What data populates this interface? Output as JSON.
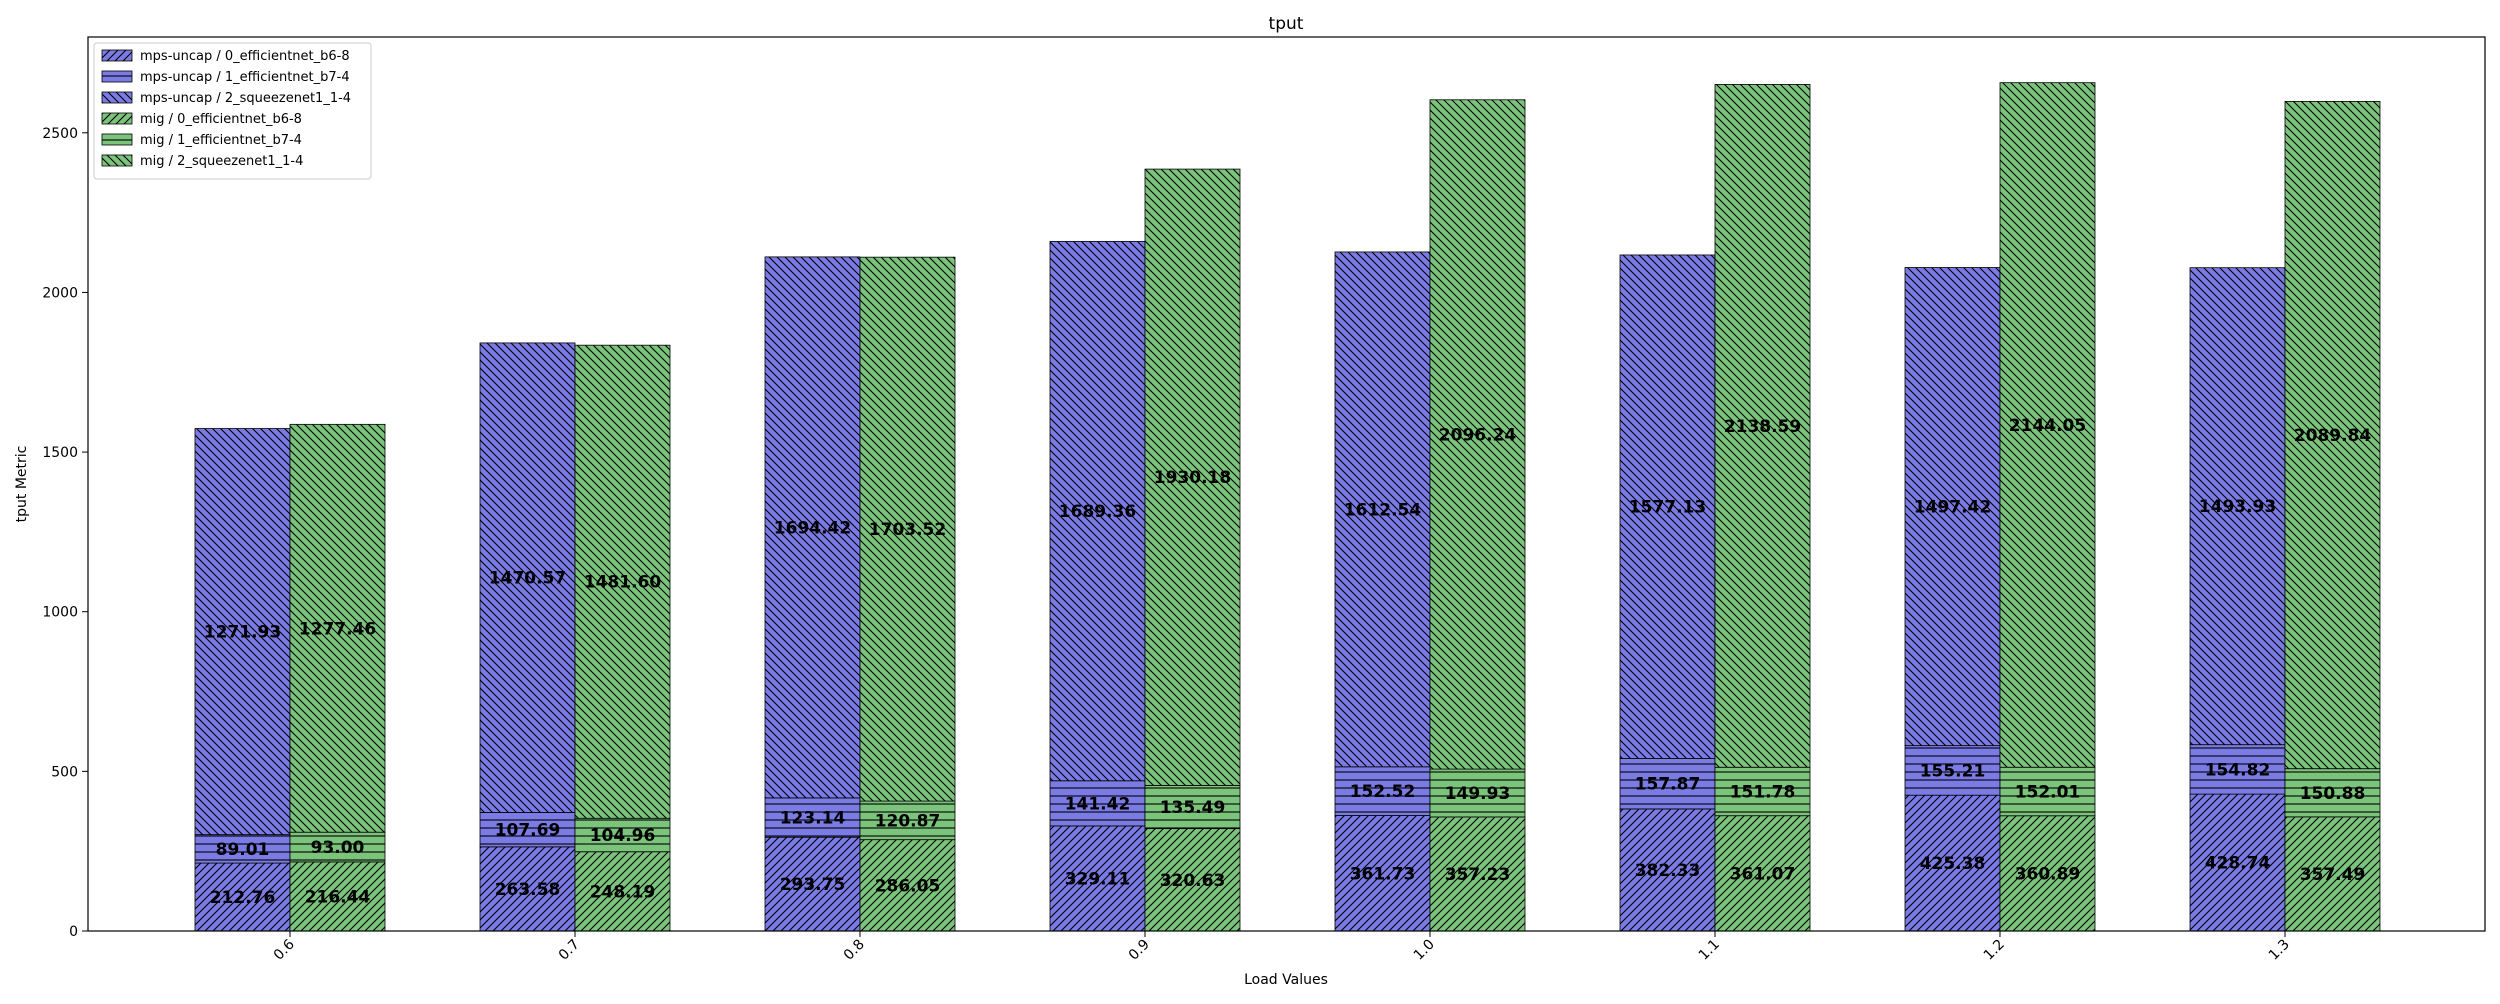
{
  "chart_data": {
    "type": "bar",
    "stacked": true,
    "grouped": true,
    "title": "tput",
    "xlabel": "Load Values",
    "ylabel": "tput Metric",
    "ylim": [
      0,
      2800
    ],
    "yticks": [
      0,
      500,
      1000,
      1500,
      2000,
      2500
    ],
    "categories": [
      "0.6",
      "0.7",
      "0.8",
      "0.9",
      "1.0",
      "1.1",
      "1.2",
      "1.3"
    ],
    "grid": false,
    "legend_position": "top-left",
    "colors": {
      "mps-uncap": "#7b7be6",
      "mig": "#7bc47b",
      "edge": "#000000"
    },
    "series": [
      {
        "name": "mps-uncap / 0_efficientnet_b6-8",
        "group": "mps-uncap",
        "hatch": "forward-diagonal",
        "values": [
          212.76,
          263.58,
          293.75,
          329.11,
          361.73,
          382.33,
          425.38,
          428.74
        ],
        "labels": [
          "212.76",
          "263.58",
          "293.75",
          "329.11",
          "361.73",
          "382.33",
          "425.38",
          "428.74"
        ]
      },
      {
        "name": "mps-uncap / 1_efficientnet_b7-4",
        "group": "mps-uncap",
        "hatch": "horizontal",
        "values": [
          89.01,
          107.69,
          123.14,
          141.42,
          152.52,
          157.87,
          155.21,
          154.82
        ],
        "labels": [
          "89.01",
          "107.69",
          "123.14",
          "141.42",
          "152.52",
          "157.87",
          "155.21",
          "154.82"
        ]
      },
      {
        "name": "mps-uncap / 2_squeezenet1_1-4",
        "group": "mps-uncap",
        "hatch": "back-diagonal",
        "values": [
          1271.93,
          1470.57,
          1694.42,
          1689.36,
          1612.54,
          1577.13,
          1497.42,
          1493.93
        ],
        "labels": [
          "1271.93",
          "1470.57",
          "1694.42",
          "1689.36",
          "1612.54",
          "1577.13",
          "1497.42",
          "1493.93"
        ]
      },
      {
        "name": "mig / 0_efficientnet_b6-8",
        "group": "mig",
        "hatch": "forward-diagonal",
        "values": [
          216.44,
          248.19,
          286.05,
          320.63,
          357.23,
          361.07,
          360.89,
          357.49
        ],
        "labels": [
          "216.44",
          "248.19",
          "286.05",
          "320.63",
          "357.23",
          "361.07",
          "360.89",
          "357.49"
        ]
      },
      {
        "name": "mig / 1_efficientnet_b7-4",
        "group": "mig",
        "hatch": "horizontal",
        "values": [
          93.0,
          104.96,
          120.87,
          135.49,
          149.93,
          151.78,
          152.01,
          150.88
        ],
        "labels": [
          "93.00",
          "104.96",
          "120.87",
          "135.49",
          "149.93",
          "151.78",
          "152.01",
          "150.88"
        ]
      },
      {
        "name": "mig / 2_squeezenet1_1-4",
        "group": "mig",
        "hatch": "back-diagonal",
        "values": [
          1277.46,
          1481.6,
          1703.52,
          1930.18,
          2096.24,
          2138.59,
          2144.05,
          2089.84
        ],
        "labels": [
          "1277.46",
          "1481.60",
          "1703.52",
          "1930.18",
          "2096.24",
          "2138.59",
          "2144.05",
          "2089.84"
        ]
      }
    ]
  }
}
